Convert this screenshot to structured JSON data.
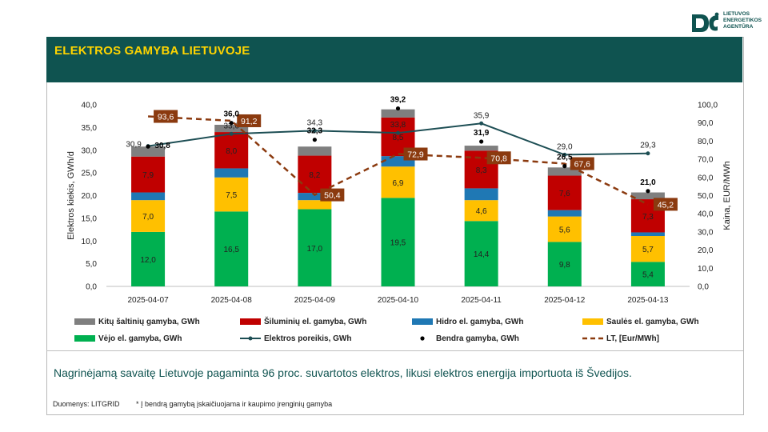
{
  "logo": {
    "lines": [
      "LIETUVOS",
      "ENERGETIKOS",
      "AGENTŪRA"
    ]
  },
  "header": {
    "title": "ELEKTROS GAMYBA LIETUVOJE"
  },
  "summary": "Nagrinėjamą savaitę Lietuvoje pagaminta 96 proc. suvartotos elektros, likusi elektros energija importuota iš Švedijos.",
  "source": "Duomenys: LITGRID",
  "footnote": "* Į bendrą gamybą įskaičiuojama ir kaupimo įrenginių gamyba",
  "colors": {
    "brand": "#0f5350",
    "title": "#ffd400",
    "other": "#7f7f7f",
    "thermal": "#c00000",
    "hydro": "#1f78b4",
    "solar": "#ffc000",
    "wind": "#00b050",
    "demand_line": "#1d4e54",
    "price_line": "#8b3a0f"
  },
  "chart_data": {
    "type": "bar",
    "stacked": true,
    "categories": [
      "2025-04-07",
      "2025-04-08",
      "2025-04-09",
      "2025-04-10",
      "2025-04-11",
      "2025-04-12",
      "2025-04-13"
    ],
    "ylabel": "Elektros kiekis, GWh/d",
    "y2label": "Kaina, EUR/MWh",
    "ylim": [
      0,
      40
    ],
    "y2lim": [
      0,
      100
    ],
    "yticks": [
      "0,0",
      "5,0",
      "10,0",
      "15,0",
      "20,0",
      "25,0",
      "30,0",
      "35,0",
      "40,0"
    ],
    "y2ticks": [
      "0,0",
      "10,0",
      "20,0",
      "30,0",
      "40,0",
      "50,0",
      "60,0",
      "70,0",
      "80,0",
      "90,0",
      "100,0"
    ],
    "series": [
      {
        "name": "Vėjo el. gamyba, GWh",
        "color_key": "wind",
        "values": [
          12.0,
          16.5,
          17.0,
          19.5,
          14.4,
          9.8,
          5.4
        ],
        "labels": [
          "12,0",
          "16,5",
          "17,0",
          "19,5",
          "14,4",
          "9,8",
          "5,4"
        ]
      },
      {
        "name": "Saulės el. gamyba, GWh",
        "color_key": "solar",
        "values": [
          7.0,
          7.5,
          2.0,
          6.9,
          4.6,
          5.6,
          5.7
        ],
        "labels": [
          "7,0",
          "7,5",
          "",
          "6,9",
          "4,6",
          "5,6",
          "5,7"
        ]
      },
      {
        "name": "Hidro el. gamyba, GWh",
        "color_key": "hydro",
        "values": [
          1.7,
          2.0,
          1.6,
          2.3,
          2.6,
          1.4,
          0.8
        ],
        "labels": [
          "",
          "",
          "",
          "",
          "",
          "",
          ""
        ]
      },
      {
        "name": "Šiluminių el. gamyba, GWh",
        "color_key": "thermal",
        "values": [
          7.9,
          8.0,
          8.2,
          8.5,
          8.3,
          7.6,
          7.3
        ],
        "labels": [
          "7,9",
          "8,0",
          "8,2",
          "8,5",
          "8,3",
          "7,6",
          "7,3"
        ]
      },
      {
        "name": "Kitų šaltinių gamyba,  GWh",
        "color_key": "other",
        "values": [
          2.2,
          1.6,
          2.0,
          1.8,
          1.1,
          1.8,
          1.5
        ],
        "labels": [
          "",
          "",
          "",
          "",
          "",
          "",
          ""
        ]
      }
    ],
    "total": {
      "name": "Bendra gamyba, GWh",
      "values": [
        30.8,
        36.0,
        32.3,
        39.2,
        31.9,
        26.5,
        21.0
      ],
      "labels": [
        "30,8",
        "36,0",
        "32,3",
        "39,2",
        "31,9",
        "26,5",
        "21,0"
      ]
    },
    "demand": {
      "name": "Elektros poreikis, GWh",
      "values": [
        30.9,
        33.6,
        34.3,
        33.8,
        35.9,
        29.0,
        29.3
      ],
      "labels": [
        "30,9",
        "33,6",
        "34,3",
        "33,8",
        "35,9",
        "29,0",
        "29,3"
      ]
    },
    "price": {
      "name": "LT, [Eur/MWh]",
      "values": [
        93.6,
        91.2,
        50.4,
        72.9,
        70.8,
        67.6,
        45.2
      ],
      "labels": [
        "93,6",
        "91,2",
        "50,4",
        "72,9",
        "70,8",
        "67,6",
        "45,2"
      ]
    },
    "legend": [
      {
        "label": "Kitų šaltinių gamyba,  GWh",
        "kind": "box",
        "color_key": "other"
      },
      {
        "label": "Šiluminių el. gamyba, GWh",
        "kind": "box",
        "color_key": "thermal"
      },
      {
        "label": "Hidro el. gamyba, GWh",
        "kind": "box",
        "color_key": "hydro"
      },
      {
        "label": "Saulės el. gamyba, GWh",
        "kind": "box",
        "color_key": "solar"
      },
      {
        "label": "Vėjo el. gamyba, GWh",
        "kind": "box",
        "color_key": "wind"
      },
      {
        "label": "Elektros poreikis, GWh",
        "kind": "line",
        "color_key": "demand_line"
      },
      {
        "label": "Bendra gamyba, GWh",
        "kind": "dot",
        "color_key": "black"
      },
      {
        "label": "LT, [Eur/MWh]",
        "kind": "dash",
        "color_key": "price_line"
      }
    ],
    "legend_position": "bottom"
  }
}
